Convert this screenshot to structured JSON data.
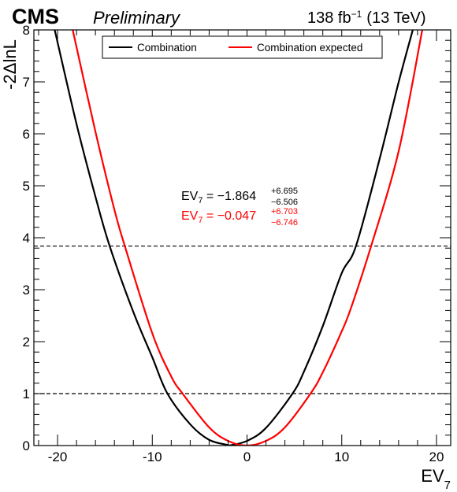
{
  "header": {
    "experiment": "CMS",
    "status": "Preliminary",
    "lumi_prefix": "138 fb",
    "lumi_exp": "−1",
    "energy": "(13 TeV)"
  },
  "colors": {
    "observed": "#000000",
    "expected": "#ff0000",
    "reference_lines": "#000000"
  },
  "legend": {
    "observed_label": "Combination",
    "expected_label": "Combination expected",
    "placement": "top-center"
  },
  "results": {
    "observed": {
      "prefix": "EV",
      "sub": "7",
      "value": " = −1.864",
      "up": "+6.695",
      "down": "−6.506"
    },
    "expected": {
      "prefix": "EV",
      "sub": "7",
      "value": " = −0.047",
      "up": "+6.703",
      "down": "−6.746"
    }
  },
  "chart_data": {
    "type": "line",
    "title": "",
    "xlabel_prefix": "EV",
    "xlabel_sub": "7",
    "ylabel": "-2ΔlnL",
    "xlim": [
      -22.5,
      21.5
    ],
    "ylim": [
      0,
      8
    ],
    "x_ticks": [
      -20,
      -10,
      0,
      10,
      20
    ],
    "x_tick_labels": [
      "-20",
      "-10",
      "0",
      "10",
      "20"
    ],
    "y_ticks": [
      0,
      1,
      2,
      3,
      4,
      5,
      6,
      7,
      8
    ],
    "y_tick_labels": [
      "0",
      "1",
      "2",
      "3",
      "4",
      "5",
      "6",
      "7",
      "8"
    ],
    "reference_lines": [
      1,
      3.84
    ],
    "grid": false,
    "series": [
      {
        "name": "Combination",
        "color": "#000000",
        "x": [
          -20.3,
          -18,
          -16,
          -14.5,
          -12,
          -10,
          -8.4,
          -6,
          -4,
          -2,
          -1.864,
          0,
          2,
          4.8,
          6,
          8,
          10,
          11.5,
          14,
          16,
          17.5
        ],
        "y": [
          8.0,
          6.19,
          4.79,
          3.84,
          2.57,
          1.7,
          1.0,
          0.41,
          0.11,
          0.01,
          0.0,
          0.09,
          0.34,
          1.0,
          1.42,
          2.3,
          3.32,
          3.84,
          5.52,
          6.99,
          8.0
        ]
      },
      {
        "name": "Combination expected",
        "color": "#ff0000",
        "x": [
          -18.4,
          -16,
          -14,
          -12.9,
          -10,
          -8,
          -6.8,
          -4,
          -2,
          -0.047,
          2,
          4,
          6.7,
          8,
          10,
          11,
          13.1,
          16,
          18.5
        ],
        "y": [
          8.0,
          6.04,
          4.54,
          3.84,
          2.16,
          1.33,
          1.0,
          0.35,
          0.09,
          0.0,
          0.09,
          0.35,
          1.0,
          1.41,
          2.2,
          2.66,
          3.84,
          5.66,
          8.0
        ]
      }
    ]
  }
}
